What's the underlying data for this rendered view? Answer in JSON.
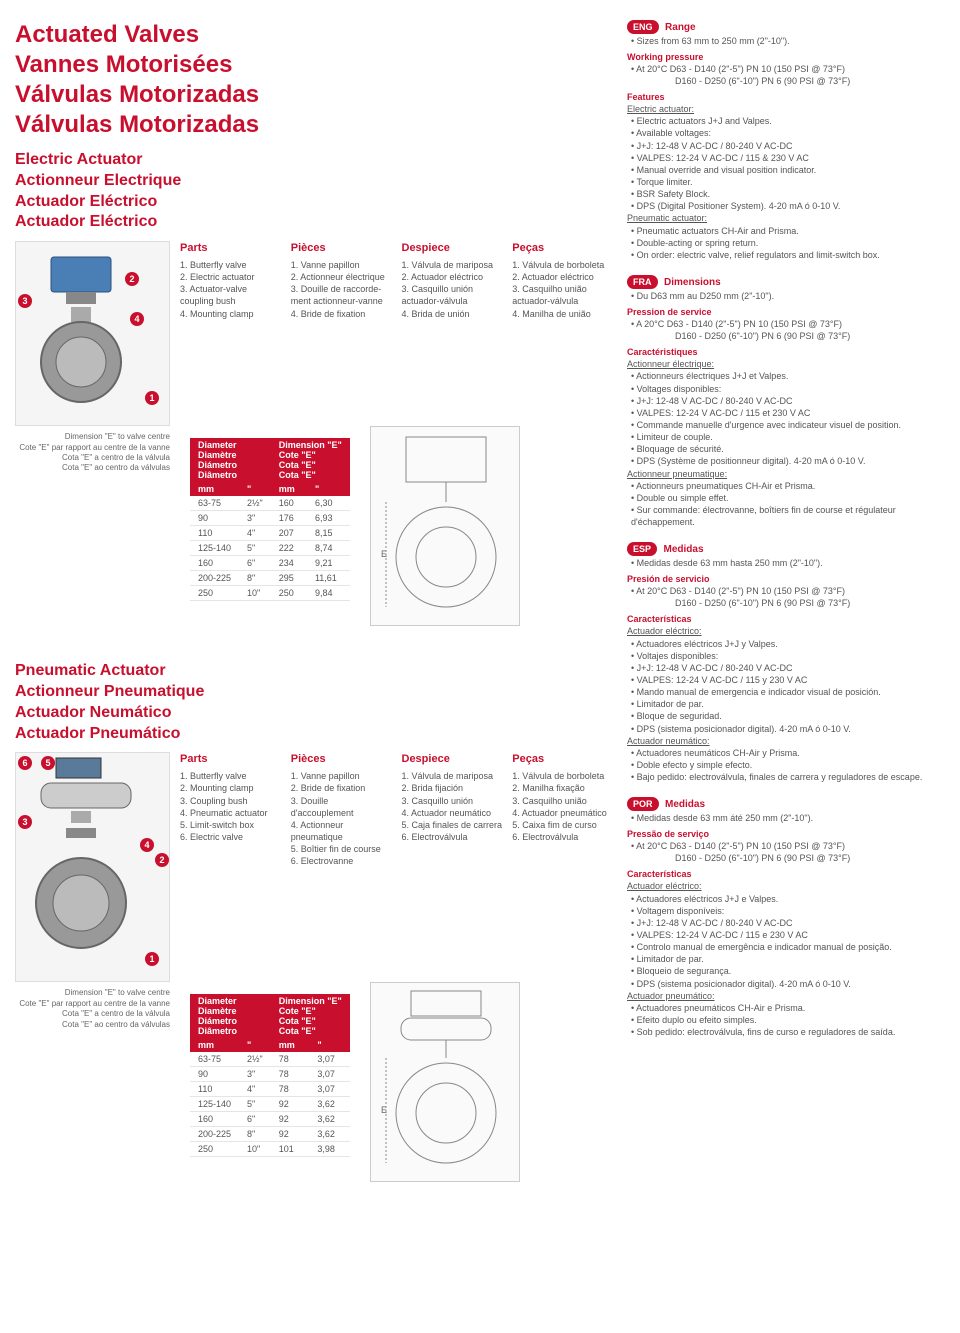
{
  "title_lines": [
    "Actuated Valves",
    "Vannes Motorisées",
    "Válvulas Motorizadas",
    "Válvulas Motorizadas"
  ],
  "electric": {
    "subtitles": [
      "Electric Actuator",
      "Actionneur Electrique",
      "Actuador Eléctrico",
      "Actuador Eléctrico"
    ],
    "parts": {
      "en": {
        "h": "Parts",
        "items": [
          "1. Butterfly valve",
          "2. Electric actuator",
          "3. Actuator-valve coupling bush",
          "4. Mounting clamp"
        ]
      },
      "fr": {
        "h": "Pièces",
        "items": [
          "1. Vanne papillon",
          "2. Actionneur électrique",
          "3. Douille de raccorde-ment actionneur-vanne",
          "4. Bride de fixation"
        ]
      },
      "es": {
        "h": "Despiece",
        "items": [
          "1. Válvula de mariposa",
          "2. Actuador eléctrico",
          "3. Casquillo unión actuador-válvula",
          "4. Brida de unión"
        ]
      },
      "pt": {
        "h": "Peças",
        "items": [
          "1. Válvula de borboleta",
          "2. Actuador eléctrico",
          "3. Casquilho união actuador-válvula",
          "4. Manilha de união"
        ]
      }
    },
    "dim_note": [
      "Dimension \"E\" to valve centre",
      "Cote \"E\" par rapport au centre de la vanne",
      "Cota \"E\" a centro de la válvula",
      "Cota \"E\" ao centro da válvulas"
    ],
    "table": {
      "head1": [
        "Diameter",
        "Diamètre",
        "Diámetro",
        "Diâmetro"
      ],
      "head2": [
        "Dimension \"E\"",
        "Cote \"E\"",
        "Cota \"E\"",
        "Cota \"E\""
      ],
      "units": [
        "mm",
        "\"",
        "mm",
        "\""
      ],
      "rows": [
        [
          "63-75",
          "2½\"",
          "160",
          "6,30"
        ],
        [
          "90",
          "3\"",
          "176",
          "6,93"
        ],
        [
          "110",
          "4\"",
          "207",
          "8,15"
        ],
        [
          "125-140",
          "5\"",
          "222",
          "8,74"
        ],
        [
          "160",
          "6\"",
          "234",
          "9,21"
        ],
        [
          "200-225",
          "8\"",
          "295",
          "11,61"
        ],
        [
          "250",
          "10\"",
          "250",
          "9,84"
        ]
      ]
    }
  },
  "pneumatic": {
    "subtitles": [
      "Pneumatic Actuator",
      "Actionneur Pneumatique",
      "Actuador Neumático",
      "Actuador Pneumático"
    ],
    "parts": {
      "en": {
        "h": "Parts",
        "items": [
          "1. Butterfly valve",
          "2. Mounting clamp",
          "3. Coupling bush",
          "4. Pneumatic actuator",
          "5. Limit-switch box",
          "6. Electric valve"
        ]
      },
      "fr": {
        "h": "Pièces",
        "items": [
          "1. Vanne papillon",
          "2. Bride de fixation",
          "3. Douille d'accouplement",
          "4. Actionneur pneumatique",
          "5. Boîtier fin de course",
          "6. Electrovanne"
        ]
      },
      "es": {
        "h": "Despiece",
        "items": [
          "1. Válvula de mariposa",
          "2. Brida fijación",
          "3. Casquillo unión",
          "4. Actuador neumático",
          "5. Caja finales de carrera",
          "6. Electroválvula"
        ]
      },
      "pt": {
        "h": "Peças",
        "items": [
          "1. Válvula de borboleta",
          "2. Manilha fixação",
          "3. Casquilho união",
          "4. Actuador pneumático",
          "5. Caixa fim de curso",
          "6. Electroválvula"
        ]
      }
    },
    "dim_note": [
      "Dimension \"E\" to valve centre",
      "Cote \"E\" par rapport au centre de la vanne",
      "Cota \"E\" a centro de la válvula",
      "Cota \"E\" ao centro da válvulas"
    ],
    "table": {
      "rows": [
        [
          "63-75",
          "2½\"",
          "78",
          "3,07"
        ],
        [
          "90",
          "3\"",
          "78",
          "3,07"
        ],
        [
          "110",
          "4\"",
          "78",
          "3,07"
        ],
        [
          "125-140",
          "5\"",
          "92",
          "3,62"
        ],
        [
          "160",
          "6\"",
          "92",
          "3,62"
        ],
        [
          "200-225",
          "8\"",
          "92",
          "3,62"
        ],
        [
          "250",
          "10\"",
          "101",
          "3,98"
        ]
      ]
    }
  },
  "langs": {
    "eng": {
      "tag": "ENG",
      "range_h": "Range",
      "range": "Sizes from 63 mm to 250 mm (2\"-10\").",
      "wp_h": "Working pressure",
      "wp1": "At 20°C   D63 - D140 (2\"-5\") PN 10 (150 PSI @ 73°F)",
      "wp2": "D160 - D250 (6\"-10\") PN 6 (90 PSI @ 73°F)",
      "feat_h": "Features",
      "elec_h": "Electric actuator:",
      "elec": [
        "Electric actuators J+J and Valpes.",
        "Available voltages:",
        "J+J: 12-48 V AC-DC / 80-240 V AC-DC",
        "VALPES: 12-24 V AC-DC / 115 & 230 V AC",
        "Manual override and visual position indicator.",
        "Torque limiter.",
        "BSR Safety Block.",
        "DPS (Digital Positioner System). 4-20 mA ó 0-10 V."
      ],
      "pneu_h": "Pneumatic actuator:",
      "pneu": [
        "Pneumatic actuators CH-Air and Prisma.",
        "Double-acting or spring return.",
        "On order: electric valve, relief regulators and limit-switch box."
      ]
    },
    "fra": {
      "tag": "FRA",
      "range_h": "Dimensions",
      "range": "Du D63 mm au D250 mm (2\"-10\").",
      "wp_h": "Pression de service",
      "wp1": "A 20°C   D63 - D140 (2\"-5\") PN 10 (150 PSI @ 73°F)",
      "wp2": "D160 - D250 (6\"-10\") PN 6 (90 PSI @ 73°F)",
      "feat_h": "Caractéristiques",
      "elec_h": "Actionneur électrique:",
      "elec": [
        "Actionneurs électriques J+J et Valpes.",
        "Voltages disponibles:",
        "J+J: 12-48 V AC-DC / 80-240 V AC-DC",
        "VALPES: 12-24 V AC-DC / 115 et 230 V AC",
        "Commande manuelle d'urgence avec indicateur visuel de position.",
        "Limiteur de couple.",
        "Bloquage de sécurité.",
        "DPS (Système de positionneur digital). 4-20 mA ó 0-10 V."
      ],
      "pneu_h": "Actionneur pneumatique:",
      "pneu": [
        "Actionneurs pneumatiques CH-Air et Prisma.",
        "Double ou simple effet.",
        "Sur commande: électrovanne, boîtiers fin de course et régulateur d'échappement."
      ]
    },
    "esp": {
      "tag": "ESP",
      "range_h": "Medidas",
      "range": "Medidas desde 63 mm hasta 250 mm (2\"-10\").",
      "wp_h": "Presión de servicio",
      "wp1": "At 20°C   D63 - D140 (2\"-5\") PN 10 (150 PSI @ 73°F)",
      "wp2": "D160 - D250 (6\"-10\") PN 6 (90 PSI @ 73°F)",
      "feat_h": "Características",
      "elec_h": "Actuador eléctrico:",
      "elec": [
        "Actuadores eléctricos J+J y Valpes.",
        "Voltajes disponibles:",
        "J+J: 12-48 V AC-DC / 80-240 V AC-DC",
        "VALPES: 12-24 V AC-DC / 115 y 230 V AC",
        "Mando manual de emergencia e indicador visual de posición.",
        "Limitador de par.",
        "Bloque de seguridad.",
        "DPS (sistema posicionador digital). 4-20 mA ó 0-10 V."
      ],
      "pneu_h": "Actuador neumático:",
      "pneu": [
        "Actuadores neumáticos CH-Air y Prisma.",
        "Doble efecto y simple efecto.",
        "Bajo pedido: electroválvula, finales de carrera y reguladores de escape."
      ]
    },
    "por": {
      "tag": "POR",
      "range_h": "Medidas",
      "range": "Medidas desde 63 mm áté 250 mm (2\"-10\").",
      "wp_h": "Pressão de serviço",
      "wp1": "At 20°C   D63 - D140 (2\"-5\") PN 10 (150 PSI @ 73°F)",
      "wp2": "D160 - D250 (6\"-10\") PN 6 (90 PSI @ 73°F)",
      "feat_h": "Características",
      "elec_h": "Actuador eléctrico:",
      "elec": [
        "Actuadores eléctricos J+J e Valpes.",
        "Voltagem disponíveis:",
        "J+J: 12-48 V AC-DC / 80-240 V AC-DC",
        "VALPES: 12-24 V AC-DC / 115 e 230 V AC",
        "Controlo manual de emergência e indicador manual de posição.",
        "Limitador de par.",
        "Bloqueio de segurança.",
        "DPS (sistema posicionador digital). 4-20 mA ó 0-10 V."
      ],
      "pneu_h": "Actuador pneumático:",
      "pneu": [
        "Actuadores pneumáticos CH-Air e Prisma.",
        "Efeito duplo ou efeito simples.",
        "Sob pedido: electroválvula, fins de curso e reguladores de saída."
      ]
    }
  },
  "colors": {
    "brand_red": "#C8102E",
    "text_grey": "#555555",
    "actuator_blue": "#4a7fb5"
  }
}
